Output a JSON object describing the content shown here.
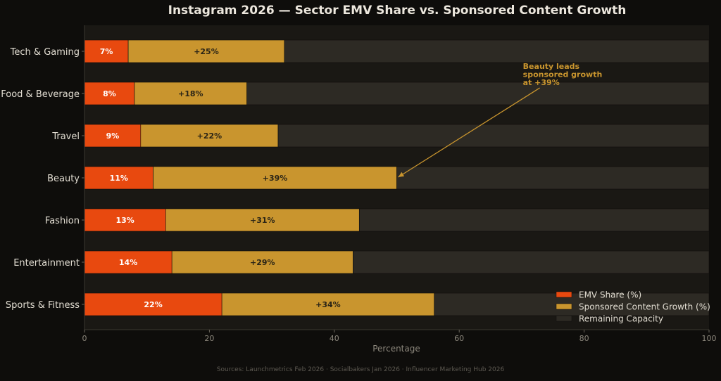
{
  "colors": {
    "background": "#0e0d0b",
    "plot_background": "#1a1814",
    "emv": "#e8490f",
    "growth": "#c9952e",
    "remaining": "#2d2a24"
  },
  "chart_data": {
    "type": "bar",
    "orientation": "horizontal",
    "stacked": true,
    "title": "Instagram 2026 — Sector EMV Share vs. Sponsored Content Growth",
    "xlabel": "Percentage",
    "ylabel": "",
    "xlim": [
      0,
      100
    ],
    "xticks": [
      "0",
      "20",
      "40",
      "60",
      "80",
      "100"
    ],
    "categories": [
      "Tech & Gaming",
      "Food & Beverage",
      "Travel",
      "Beauty",
      "Fashion",
      "Entertainment",
      "Sports & Fitness"
    ],
    "series": [
      {
        "name": "EMV Share (%)",
        "values": [
          7,
          8,
          9,
          11,
          13,
          14,
          22
        ],
        "labels": [
          "7%",
          "8%",
          "9%",
          "11%",
          "13%",
          "14%",
          "22%"
        ]
      },
      {
        "name": "Sponsored Content Growth (%)",
        "values": [
          25,
          18,
          22,
          39,
          31,
          29,
          34
        ],
        "labels": [
          "+25%",
          "+18%",
          "+22%",
          "+39%",
          "+31%",
          "+29%",
          "+34%"
        ]
      },
      {
        "name": "Remaining Capacity",
        "values": [
          68,
          74,
          69,
          50,
          56,
          57,
          44
        ]
      }
    ],
    "annotation": {
      "lines": [
        "Beauty leads",
        "sponsored growth",
        "at +39%"
      ],
      "target_category": "Beauty",
      "target_x": 50
    },
    "legend_position": "bottom-right",
    "grid": false,
    "source": "Sources: Launchmetrics Feb 2026 · Socialbakers Jan 2026 · Influencer Marketing Hub 2026"
  }
}
